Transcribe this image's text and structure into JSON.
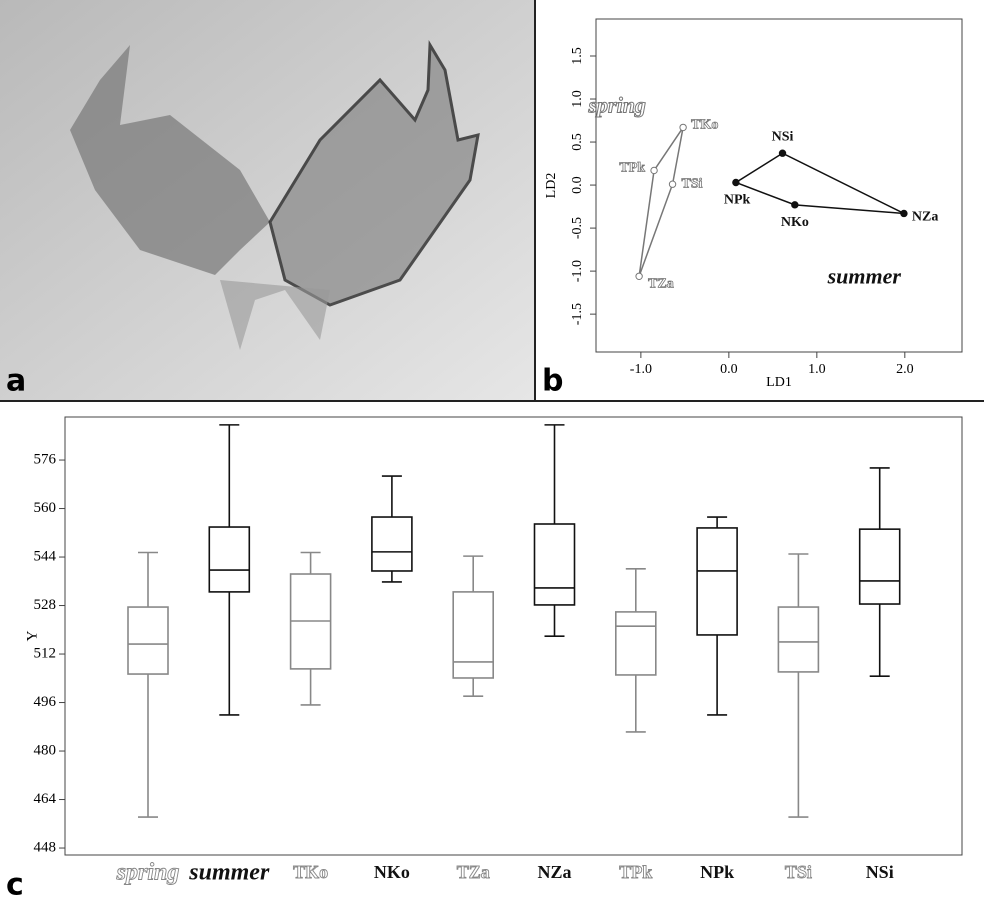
{
  "panel_labels": [
    "a",
    "b",
    "c"
  ],
  "chart_data": [
    {
      "type": "scatter",
      "xlabel": "LD1",
      "ylabel": "LD2",
      "xlim": [
        -1.51,
        2.65
      ],
      "ylim": [
        -1.94,
        1.93
      ],
      "xticks": [
        {
          "value": -1,
          "label": "-1.0"
        },
        {
          "value": 0,
          "label": "0.0"
        },
        {
          "value": 1,
          "label": "1.0"
        },
        {
          "value": 2,
          "label": "2.0"
        }
      ],
      "yticks": [
        {
          "value": -1.5,
          "label": "-1.5"
        },
        {
          "value": -1,
          "label": "-1.0"
        },
        -0.5,
        {
          "value": 0,
          "label": "0.0"
        },
        0.5,
        {
          "value": 1,
          "label": "1.0"
        },
        1.5
      ],
      "series": [
        {
          "name": "spring",
          "color": "#777777",
          "filled": false,
          "labels": [
            "TKo",
            "TPk",
            "TZa",
            "TSi"
          ],
          "x": [
            -0.52,
            -0.85,
            -1.02,
            -0.64
          ],
          "y": [
            0.67,
            0.17,
            -1.06,
            0.01
          ]
        },
        {
          "name": "summer",
          "color": "#111111",
          "filled": true,
          "labels": [
            "NSi",
            "NPk",
            "NKo",
            "NZa"
          ],
          "x": [
            0.61,
            0.08,
            0.75,
            1.99
          ],
          "y": [
            0.37,
            0.03,
            -0.23,
            -0.33
          ]
        }
      ]
    },
    {
      "type": "box",
      "ylabel": "Y",
      "ylim": [
        445.7,
        590.2
      ],
      "yticks": [
        448,
        464,
        480,
        496,
        512,
        528,
        544,
        560,
        576
      ],
      "categories": [
        "spring",
        "summer",
        "TKo",
        "NKo",
        "TZa",
        "NZa",
        "TPk",
        "NPk",
        "TSi",
        "NSi"
      ],
      "colors": [
        "#888888",
        "#111111",
        "#888888",
        "#111111",
        "#888888",
        "#111111",
        "#888888",
        "#111111",
        "#888888",
        "#111111"
      ],
      "stats": [
        {
          "min": 458.2,
          "q1": 505.4,
          "median": 515.3,
          "q3": 527.5,
          "max": 545.5
        },
        {
          "min": 491.9,
          "q1": 532.5,
          "median": 539.7,
          "q3": 553.9,
          "max": 587.6
        },
        {
          "min": 495.2,
          "q1": 507.1,
          "median": 522.9,
          "q3": 538.4,
          "max": 545.5
        },
        {
          "min": 535.8,
          "q1": 539.4,
          "median": 545.7,
          "q3": 557.2,
          "max": 570.7
        },
        {
          "min": 498.1,
          "q1": 504.1,
          "median": 509.4,
          "q3": 532.5,
          "max": 544.3
        },
        {
          "min": 517.9,
          "q1": 528.2,
          "median": 533.8,
          "q3": 554.9,
          "max": 587.6
        },
        {
          "min": 486.3,
          "q1": 505.1,
          "median": 521.2,
          "q3": 525.9,
          "max": 540.1
        },
        {
          "min": 491.9,
          "q1": 518.3,
          "median": 539.4,
          "q3": 553.6,
          "max": 557.2
        },
        {
          "min": 458.2,
          "q1": 506.1,
          "median": 516.0,
          "q3": 527.5,
          "max": 545.0
        },
        {
          "min": 504.7,
          "q1": 528.5,
          "median": 536.1,
          "q3": 553.2,
          "max": 573.4
        }
      ]
    }
  ]
}
